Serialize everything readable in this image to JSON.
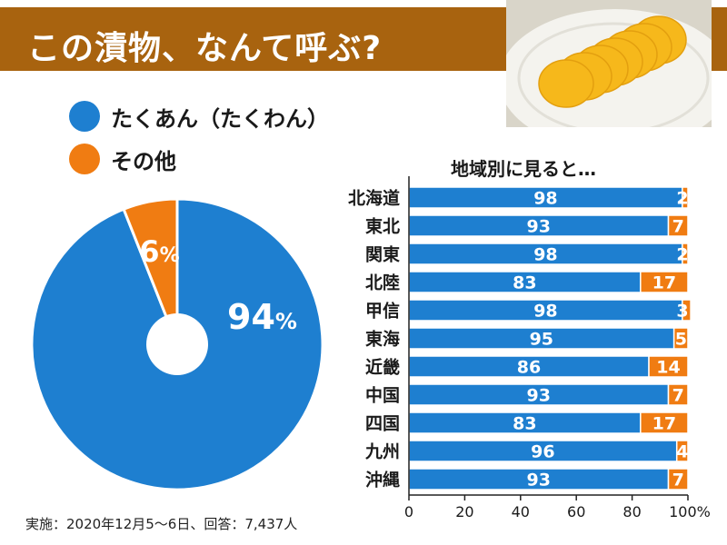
{
  "title": "この漬物、なんて呼ぶ?",
  "colors": {
    "blue": "#1e7fd0",
    "orange": "#f07c12",
    "header": "#a8630f",
    "photo_bg": "#f0efe9",
    "pickle": "#f6b81b"
  },
  "footnote": "実施：2020年12月5〜6日、回答：7,437人",
  "chart_data": [
    {
      "type": "pie",
      "legend": [
        {
          "label": "たくあん（たくわん）",
          "color": "#1e7fd0"
        },
        {
          "label": "その他",
          "color": "#f07c12"
        }
      ],
      "slices": [
        {
          "label": "たくあん（たくわん）",
          "value": 94,
          "display": "94",
          "unit": "%"
        },
        {
          "label": "その他",
          "value": 6,
          "display": "6",
          "unit": "%"
        }
      ]
    },
    {
      "type": "bar",
      "orientation": "horizontal",
      "stacked": true,
      "title": "地域別に見ると…",
      "categories": [
        "北海道",
        "東北",
        "関東",
        "北陸",
        "甲信",
        "東海",
        "近畿",
        "中国",
        "四国",
        "九州",
        "沖縄"
      ],
      "series": [
        {
          "color": "#1e7fd0",
          "values": [
            98,
            93,
            98,
            83,
            98,
            95,
            86,
            93,
            83,
            96,
            93
          ]
        },
        {
          "color": "#f07c12",
          "values": [
            2,
            7,
            2,
            17,
            3,
            5,
            14,
            7,
            17,
            4,
            7
          ]
        }
      ],
      "x_ticks": [
        "0",
        "20",
        "40",
        "60",
        "80",
        "100%"
      ],
      "xlim": [
        0,
        100
      ]
    }
  ]
}
